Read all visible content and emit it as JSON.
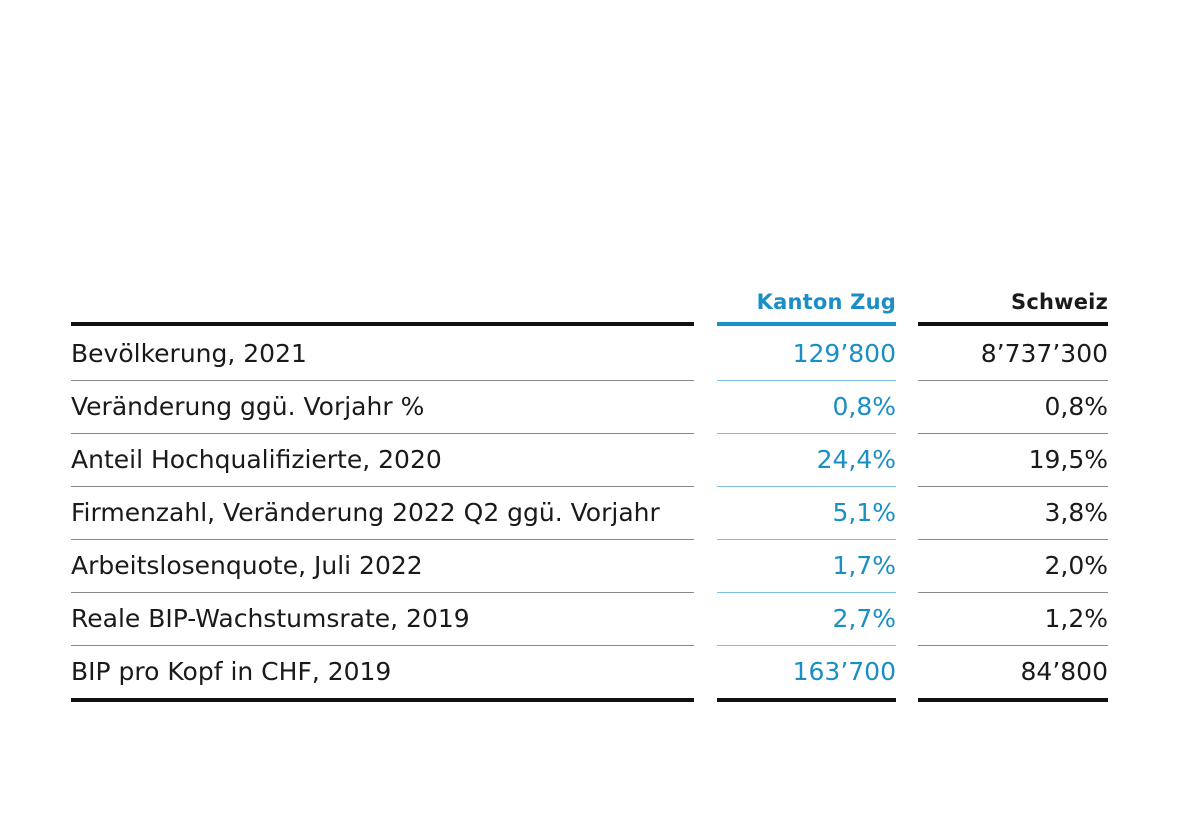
{
  "chart_data": {
    "type": "table",
    "columns": [
      "",
      "Kanton Zug",
      "Schweiz"
    ],
    "rows": [
      {
        "label": "Bevölkerung, 2021",
        "zug": "129’800",
        "schweiz": "8’737’300"
      },
      {
        "label": "Veränderung ggü. Vorjahr %",
        "zug": "0,8%",
        "schweiz": "0,8%"
      },
      {
        "label": "Anteil Hochqualifizierte, 2020",
        "zug": "24,4%",
        "schweiz": "19,5%"
      },
      {
        "label": "Firmenzahl, Veränderung 2022 Q2 ggü. Vorjahr",
        "zug": "5,1%",
        "schweiz": "3,8%"
      },
      {
        "label": "Arbeitslosenquote, Juli 2022",
        "zug": "1,7%",
        "schweiz": "2,0%"
      },
      {
        "label": "Reale BIP-Wachstumsrate, 2019",
        "zug": "2,7%",
        "schweiz": "1,2%"
      },
      {
        "label": "BIP pro Kopf in CHF, 2019",
        "zug": "163’700",
        "schweiz": "84’800"
      }
    ]
  },
  "colors": {
    "accent": "#1a8fc6",
    "text": "#1a1a1a",
    "rule": "#111111"
  }
}
